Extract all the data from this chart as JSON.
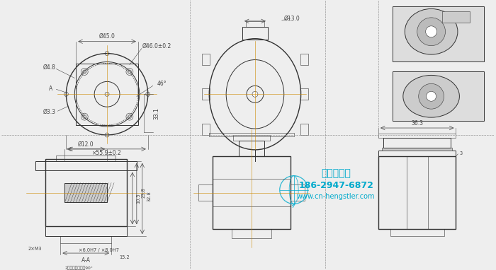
{
  "bg_color": "#eeeeee",
  "line_color": "#333333",
  "dim_color": "#444444",
  "text_color": "#333333",
  "watermark_color": "#00aacc",
  "watermark_lines": [
    "西安德伍拓",
    "186-2947-6872",
    "www.cn-hengstler.com"
  ],
  "dims_top_left": [
    "Ø45.0",
    "Ø46.0±0.2",
    "Ø4.8",
    "Ø3.3",
    "46°",
    "×55.9±0.2",
    "33.1"
  ],
  "dims_top_mid": [
    "Ø13.0"
  ],
  "dims_bottom_left": [
    "Ø12.0",
    "×6.0H7 / ×8.0H7",
    "15.2",
    "2×M3",
    "10.5",
    "23.8",
    "32.8"
  ],
  "dims_bottom_right": [
    "36.3",
    "3"
  ]
}
